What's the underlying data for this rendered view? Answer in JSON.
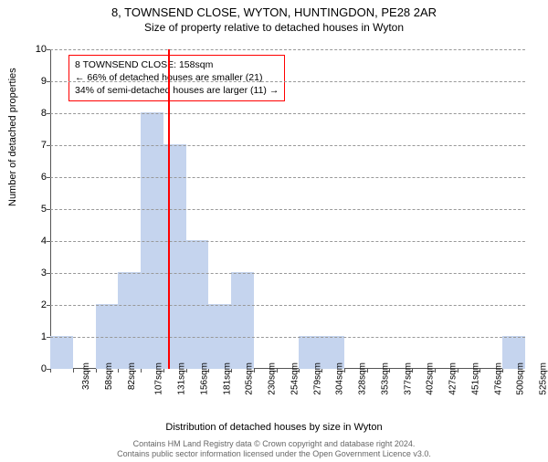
{
  "title": "8, TOWNSEND CLOSE, WYTON, HUNTINGDON, PE28 2AR",
  "subtitle": "Size of property relative to detached houses in Wyton",
  "ylabel": "Number of detached properties",
  "xlabel": "Distribution of detached houses by size in Wyton",
  "footer_line1": "Contains HM Land Registry data © Crown copyright and database right 2024.",
  "footer_line2": "Contains public sector information licensed under the Open Government Licence v3.0.",
  "chart": {
    "type": "histogram",
    "ylim": [
      0,
      10
    ],
    "ytick_step": 1,
    "bar_color": "#c5d4ee",
    "bar_border": "#c5d4ee",
    "grid_color": "#999999",
    "axis_color": "#555555",
    "background_color": "#ffffff",
    "bin_width_sqm": 24.6,
    "x_start": 33,
    "x_end": 537,
    "xticks": [
      "33sqm",
      "58sqm",
      "82sqm",
      "107sqm",
      "131sqm",
      "156sqm",
      "181sqm",
      "205sqm",
      "230sqm",
      "254sqm",
      "279sqm",
      "304sqm",
      "328sqm",
      "353sqm",
      "377sqm",
      "402sqm",
      "427sqm",
      "451sqm",
      "476sqm",
      "500sqm",
      "525sqm"
    ],
    "bars": [
      1,
      0,
      2,
      3,
      8,
      7,
      4,
      2,
      3,
      0,
      0,
      1,
      1,
      0,
      0,
      0,
      0,
      0,
      0,
      0,
      1
    ],
    "marker_sqm": 158,
    "marker_color": "#ff0000"
  },
  "infobox": {
    "line1": "8 TOWNSEND CLOSE: 158sqm",
    "line2": "← 66% of detached houses are smaller (21)",
    "line3": "34% of semi-detached houses are larger (11) →",
    "border_color": "#ff0000"
  }
}
